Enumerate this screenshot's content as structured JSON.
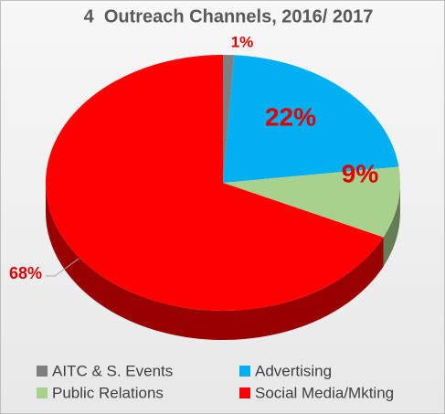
{
  "chart_data": {
    "type": "pie3d",
    "title": "4  Outreach Channels, 2016/ 2017",
    "categories": [
      "AITC & S. Events",
      "Advertising",
      "Public Relations",
      "Social Media/Mkting"
    ],
    "values": [
      1,
      22,
      9,
      68
    ],
    "value_labels": [
      "1%",
      "22%",
      "9%",
      "68%"
    ],
    "colors": [
      "#7f7f7f",
      "#00b0f0",
      "#a9d18e",
      "#ff0000"
    ],
    "label_color": "#e00000",
    "legend": "bottom"
  }
}
